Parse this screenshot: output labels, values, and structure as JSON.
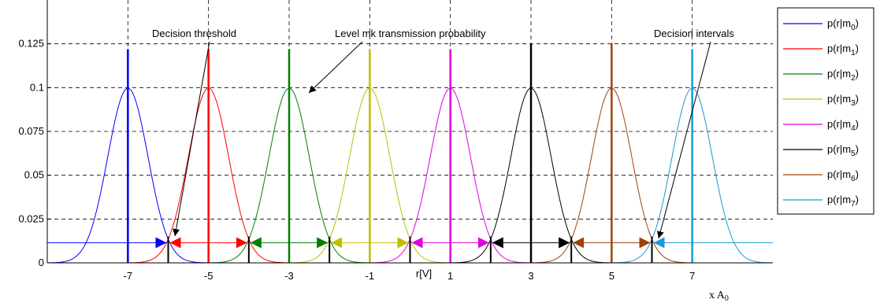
{
  "chart_data": {
    "type": "line",
    "title": "",
    "xlabel": "r[V]",
    "x_unit_note": "x A",
    "x_unit_sub": "0",
    "ylabel": "",
    "xlim": [
      -9,
      9
    ],
    "ylim": [
      0,
      0.15
    ],
    "x_ticks": [
      -7,
      -5,
      -3,
      -1,
      1,
      3,
      5,
      7
    ],
    "x_tick_labels": [
      "-7",
      "-5",
      "-3",
      "-1",
      "1",
      "3",
      "5",
      "7"
    ],
    "y_ticks": [
      0,
      0.025,
      0.05,
      0.075,
      0.1,
      0.125
    ],
    "y_tick_labels": [
      "0",
      "0.025",
      "0.05",
      "0.075",
      "0.1",
      "0.125"
    ],
    "grid": true,
    "legend_position": "right",
    "gaussian": {
      "sigma": 0.5,
      "peak": 0.0997
    },
    "series": [
      {
        "name_main": "p(r|m",
        "name_sub": "0",
        "name_end": ")",
        "mean": -7,
        "stem_height": 0.122,
        "color": "#0000ff",
        "interval": [
          -9,
          -6
        ]
      },
      {
        "name_main": "p(r|m",
        "name_sub": "1",
        "name_end": ")",
        "mean": -5,
        "stem_height": 0.122,
        "color": "#ff0000",
        "interval": [
          -6,
          -4
        ]
      },
      {
        "name_main": "p(r|m",
        "name_sub": "2",
        "name_end": ")",
        "mean": -3,
        "stem_height": 0.122,
        "color": "#008000",
        "interval": [
          -4,
          -2
        ]
      },
      {
        "name_main": "p(r|m",
        "name_sub": "3",
        "name_end": ")",
        "mean": -1,
        "stem_height": 0.122,
        "color": "#bfbf00",
        "interval": [
          -2,
          0
        ]
      },
      {
        "name_main": "p(r|m",
        "name_sub": "4",
        "name_end": ")",
        "mean": 1,
        "stem_height": 0.122,
        "color": "#e000e0",
        "interval": [
          0,
          2
        ]
      },
      {
        "name_main": "p(r|m",
        "name_sub": "5",
        "name_end": ")",
        "mean": 3,
        "stem_height": 0.125,
        "color": "#000000",
        "interval": [
          2,
          4
        ]
      },
      {
        "name_main": "p(r|m",
        "name_sub": "6",
        "name_end": ")",
        "mean": 5,
        "stem_height": 0.125,
        "color": "#a0400a",
        "interval": [
          4,
          6
        ]
      },
      {
        "name_main": "p(r|m",
        "name_sub": "7",
        "name_end": ")",
        "mean": 7,
        "stem_height": 0.122,
        "color": "#1a9ad6",
        "interval": [
          6,
          9
        ]
      }
    ],
    "thresholds": [
      -6,
      -4,
      -2,
      0,
      2,
      4,
      6
    ],
    "interval_level": 0.0115,
    "threshold_bar_height": 0.015,
    "annotations": [
      {
        "text": "Decision threshold"
      },
      {
        "text": "Level mk transmission probability"
      },
      {
        "text": "Decision intervals"
      }
    ]
  }
}
